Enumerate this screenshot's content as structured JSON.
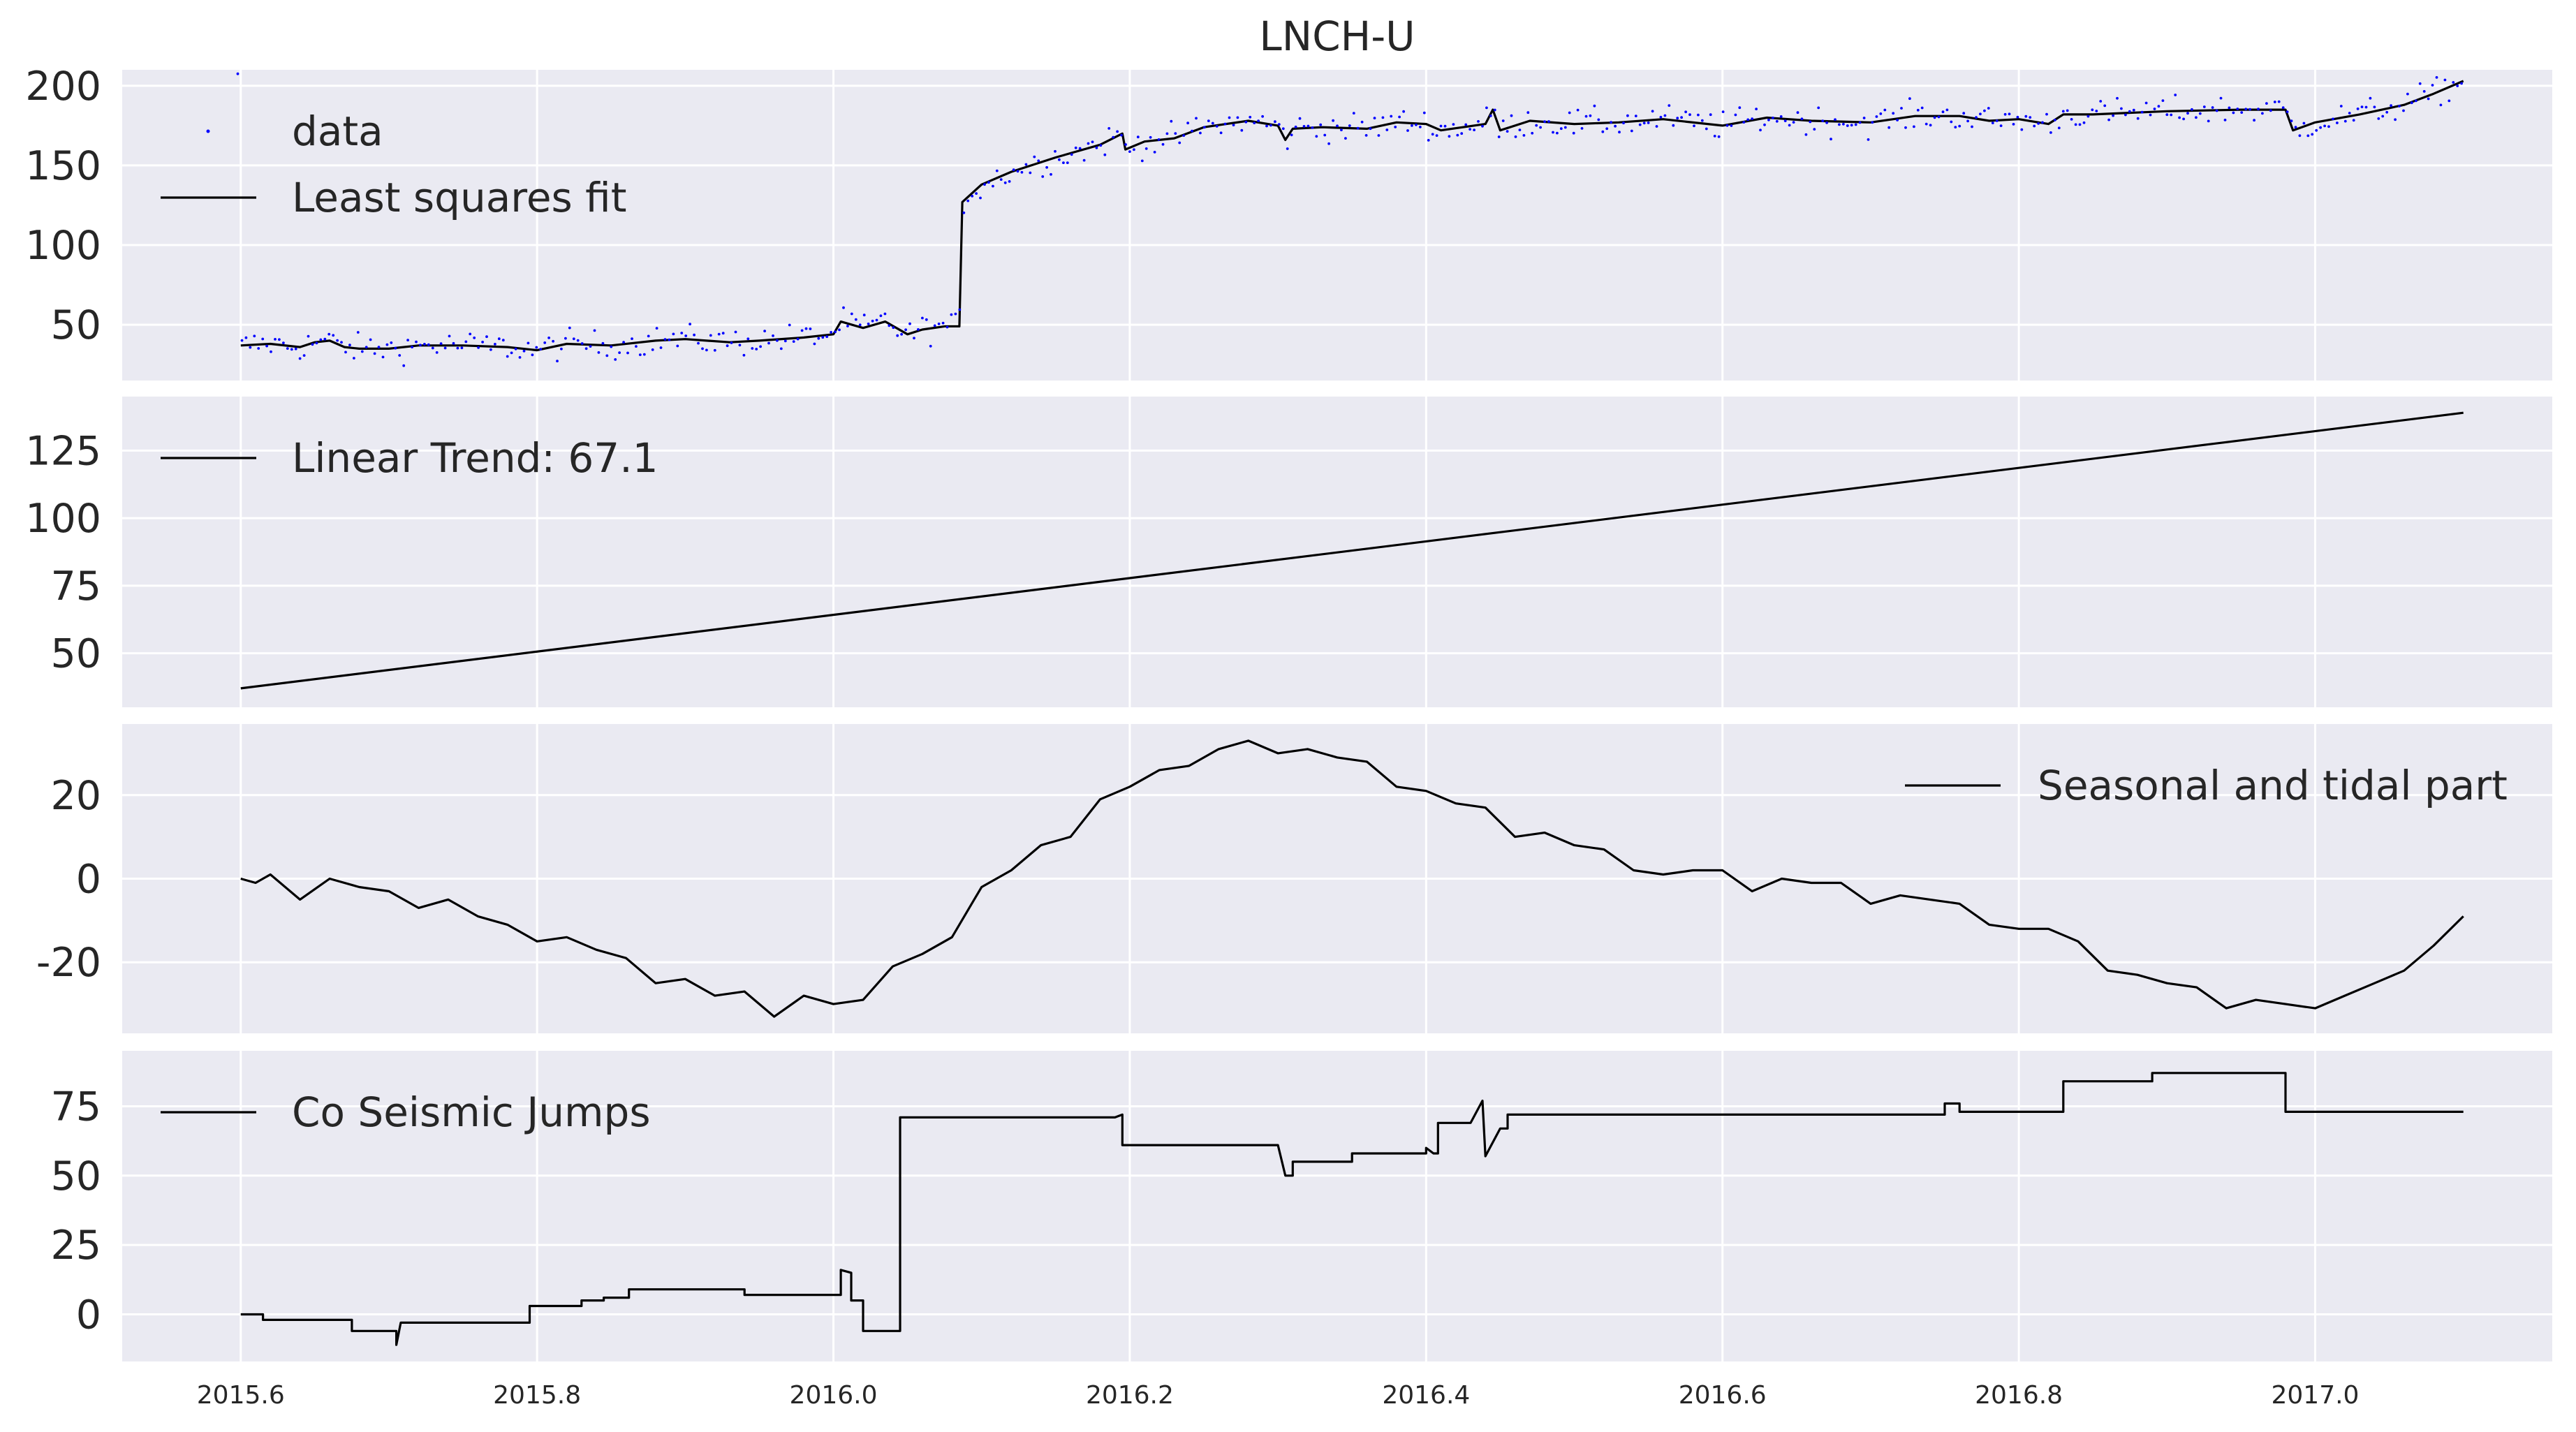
{
  "title": "LNCH-U",
  "style": {
    "background": "#eaeaf2",
    "grid_color": "#ffffff",
    "line_color": "#000000",
    "data_color": "#0000ff"
  },
  "xaxis": {
    "range": [
      2015.52,
      2017.16
    ],
    "ticks": [
      2015.6,
      2015.8,
      2016.0,
      2016.2,
      2016.4,
      2016.6,
      2016.8,
      2017.0
    ],
    "tick_labels": [
      "2015.6",
      "2015.8",
      "2016.0",
      "2016.2",
      "2016.4",
      "2016.6",
      "2016.8",
      "2017.0"
    ]
  },
  "chart_data": [
    {
      "type": "line",
      "ylim": [
        15,
        210
      ],
      "yticks": [
        50,
        100,
        150,
        200
      ],
      "legend": {
        "location": "upper-left",
        "entries": [
          "data",
          "Least squares fit"
        ]
      },
      "series": [
        {
          "name": "data",
          "kind": "scatter",
          "color": "#0000ff",
          "generated_from": "Least squares fit"
        },
        {
          "name": "Least squares fit",
          "kind": "line",
          "color": "#000000",
          "x": [
            2015.6,
            2015.62,
            2015.64,
            2015.65,
            2015.66,
            2015.67,
            2015.68,
            2015.7,
            2015.72,
            2015.75,
            2015.78,
            2015.8,
            2015.82,
            2015.85,
            2015.88,
            2015.9,
            2015.93,
            2015.95,
            2015.98,
            2016.0,
            2016.005,
            2016.02,
            2016.035,
            2016.05,
            2016.06,
            2016.075,
            2016.085,
            2016.087,
            2016.1,
            2016.12,
            2016.15,
            2016.18,
            2016.195,
            2016.197,
            2016.21,
            2016.23,
            2016.25,
            2016.28,
            2016.3,
            2016.305,
            2016.31,
            2016.33,
            2016.36,
            2016.38,
            2016.4,
            2016.41,
            2016.44,
            2016.445,
            2016.45,
            2016.47,
            2016.5,
            2016.53,
            2016.56,
            2016.6,
            2016.63,
            2016.66,
            2016.7,
            2016.73,
            2016.76,
            2016.78,
            2016.8,
            2016.82,
            2016.83,
            2016.85,
            2016.9,
            2016.95,
            2016.98,
            2016.985,
            2017.0,
            2017.03,
            2017.06,
            2017.08,
            2017.1
          ],
          "y": [
            37,
            38,
            36,
            39,
            40,
            36,
            35,
            35,
            37,
            37,
            36,
            34,
            38,
            37,
            40,
            41,
            39,
            40,
            42,
            44,
            52,
            48,
            52,
            44,
            47,
            49,
            49,
            127,
            138,
            146,
            155,
            163,
            170,
            160,
            165,
            167,
            174,
            178,
            175,
            166,
            173,
            174,
            173,
            177,
            176,
            172,
            176,
            185,
            172,
            178,
            176,
            177,
            179,
            175,
            180,
            178,
            177,
            181,
            181,
            178,
            179,
            176,
            182,
            182,
            184,
            185,
            185,
            172,
            177,
            182,
            188,
            195,
            203
          ]
        }
      ]
    },
    {
      "type": "line",
      "ylim": [
        30,
        145
      ],
      "yticks": [
        50,
        75,
        100,
        125
      ],
      "legend": {
        "location": "upper-left",
        "entries": [
          " Linear Trend: 67.1"
        ]
      },
      "series": [
        {
          "name": " Linear Trend: 67.1",
          "kind": "line",
          "color": "#000000",
          "x": [
            2015.6,
            2017.1
          ],
          "y": [
            37,
            139
          ]
        }
      ]
    },
    {
      "type": "line",
      "ylim": [
        -37,
        37
      ],
      "yticks": [
        -20,
        0,
        20
      ],
      "legend": {
        "location": "upper-right",
        "entries": [
          "Seasonal and tidal part"
        ]
      },
      "series": [
        {
          "name": "Seasonal and tidal part",
          "kind": "line",
          "color": "#000000",
          "x": [
            2015.6,
            2015.61,
            2015.62,
            2015.64,
            2015.66,
            2015.68,
            2015.7,
            2015.72,
            2015.74,
            2015.76,
            2015.78,
            2015.8,
            2015.82,
            2015.84,
            2015.86,
            2015.88,
            2015.9,
            2015.92,
            2015.94,
            2015.96,
            2015.98,
            2016.0,
            2016.02,
            2016.04,
            2016.06,
            2016.08,
            2016.1,
            2016.12,
            2016.14,
            2016.16,
            2016.18,
            2016.2,
            2016.22,
            2016.24,
            2016.26,
            2016.28,
            2016.3,
            2016.32,
            2016.34,
            2016.36,
            2016.38,
            2016.4,
            2016.42,
            2016.44,
            2016.46,
            2016.48,
            2016.5,
            2016.52,
            2016.54,
            2016.56,
            2016.58,
            2016.6,
            2016.62,
            2016.64,
            2016.66,
            2016.68,
            2016.7,
            2016.72,
            2016.74,
            2016.76,
            2016.78,
            2016.8,
            2016.82,
            2016.84,
            2016.86,
            2016.88,
            2016.9,
            2016.92,
            2016.94,
            2016.96,
            2016.98,
            2017.0,
            2017.02,
            2017.04,
            2017.06,
            2017.08,
            2017.1
          ],
          "y": [
            0,
            -1,
            1,
            -5,
            0,
            -2,
            -3,
            -7,
            -5,
            -9,
            -11,
            -15,
            -14,
            -17,
            -19,
            -25,
            -24,
            -28,
            -27,
            -33,
            -28,
            -30,
            -29,
            -21,
            -18,
            -14,
            -2,
            2,
            8,
            10,
            19,
            22,
            26,
            27,
            31,
            33,
            30,
            31,
            29,
            28,
            22,
            21,
            18,
            17,
            10,
            11,
            8,
            7,
            2,
            1,
            2,
            2,
            -3,
            0,
            -1,
            -1,
            -6,
            -4,
            -5,
            -6,
            -11,
            -12,
            -12,
            -15,
            -22,
            -23,
            -25,
            -26,
            -31,
            -29,
            -30,
            -31,
            -28,
            -25,
            -22,
            -16,
            -9
          ]
        }
      ]
    },
    {
      "type": "line",
      "ylim": [
        -17,
        95
      ],
      "yticks": [
        0,
        25,
        50,
        75
      ],
      "legend": {
        "location": "upper-left",
        "entries": [
          "Co Seismic Jumps"
        ]
      },
      "series": [
        {
          "name": "Co Seismic Jumps",
          "kind": "line",
          "color": "#000000",
          "x": [
            2015.6,
            2015.615,
            2015.615,
            2015.675,
            2015.675,
            2015.705,
            2015.705,
            2015.708,
            2015.708,
            2015.795,
            2015.795,
            2015.83,
            2015.83,
            2015.845,
            2015.845,
            2015.862,
            2015.862,
            2015.94,
            2015.94,
            2016.005,
            2016.005,
            2016.012,
            2016.012,
            2016.02,
            2016.02,
            2016.045,
            2016.045,
            2016.085,
            2016.085,
            2016.19,
            2016.195,
            2016.195,
            2016.3,
            2016.305,
            2016.31,
            2016.31,
            2016.35,
            2016.35,
            2016.4,
            2016.4,
            2016.405,
            2016.408,
            2016.408,
            2016.43,
            2016.43,
            2016.438,
            2016.44,
            2016.44,
            2016.44,
            2016.45,
            2016.45,
            2016.455,
            2016.455,
            2016.466,
            2016.466,
            2016.475,
            2016.475,
            2016.73,
            2016.73,
            2016.75,
            2016.75,
            2016.76,
            2016.76,
            2016.83,
            2016.83,
            2016.89,
            2016.89,
            2016.98,
            2016.98,
            2017.1
          ],
          "y": [
            0,
            0,
            -2,
            -2,
            -6,
            -6,
            -11,
            -3,
            -3,
            -3,
            3,
            3,
            5,
            5,
            6,
            6,
            9,
            9,
            7,
            7,
            16,
            15,
            5,
            5,
            -6,
            -6,
            71,
            71,
            71,
            71,
            72,
            61,
            61,
            50,
            50,
            55,
            55,
            58,
            58,
            60,
            58,
            58,
            69,
            69,
            69,
            77,
            57,
            57,
            57,
            67,
            67,
            67,
            72,
            72,
            72,
            72,
            72,
            72,
            72,
            72,
            76,
            76,
            73,
            73,
            84,
            84,
            87,
            87,
            73,
            73
          ]
        }
      ]
    }
  ]
}
